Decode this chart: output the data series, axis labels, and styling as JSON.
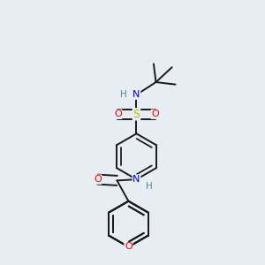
{
  "bg_color": "#e8edf4",
  "atom_colors": {
    "C": "#1a1a1a",
    "H": "#5a8888",
    "N": "#0000ee",
    "O": "#ee0000",
    "S": "#bbbb00"
  },
  "bond_color": "#1a1a1a",
  "bond_width": 1.4,
  "dbo": 0.018
}
